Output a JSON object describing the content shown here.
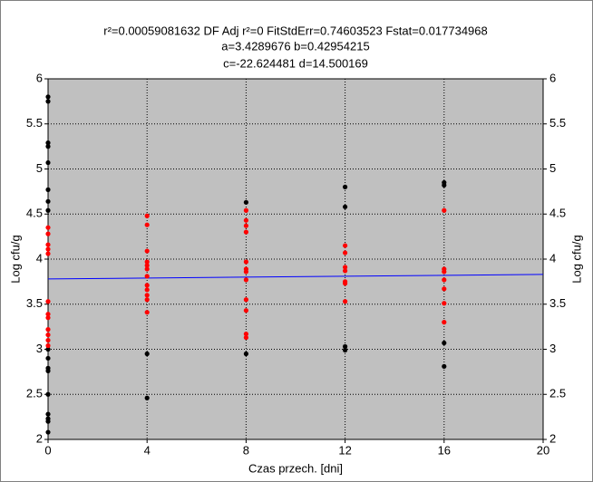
{
  "chart_data": {
    "type": "scatter",
    "title_lines": [
      "r²=0.00059081632  DF Adj r²=0  FitStdErr=0.74603523  Fstat=0.017734968",
      "a=3.4289676 b=0.42954215",
      "c=-22.624481 d=14.500169"
    ],
    "xlabel": "Czas przech. [dni]",
    "ylabel": "Log cfu/g",
    "y2label": "Log cfu/g",
    "xlim": [
      0,
      20
    ],
    "xticks": [
      0,
      4,
      8,
      12,
      16,
      20
    ],
    "ylim": [
      2,
      6
    ],
    "yticks": [
      2,
      2.5,
      3,
      3.5,
      4,
      4.5,
      5,
      5.5,
      6
    ],
    "y2lim": [
      2,
      6
    ],
    "y2ticks": [
      2,
      2.5,
      3,
      3.5,
      4,
      4.5,
      5,
      5.5,
      6
    ],
    "grid": true,
    "background": "#c0c0c0",
    "series": [
      {
        "type": "scatter",
        "color": "#000000",
        "x": [
          0,
          0,
          0,
          0,
          0,
          0,
          0,
          0,
          0,
          0,
          0,
          0,
          0,
          0,
          0,
          0,
          0,
          4,
          4,
          8,
          8,
          12,
          12,
          12,
          12,
          16,
          16,
          16,
          16
        ],
        "values": [
          5.8,
          5.75,
          5.29,
          5.25,
          5.07,
          4.77,
          4.64,
          4.54,
          3.0,
          2.9,
          2.79,
          2.76,
          2.5,
          2.28,
          2.23,
          2.2,
          2.08,
          2.95,
          2.46,
          4.63,
          2.95,
          4.8,
          4.58,
          3.03,
          2.99,
          4.85,
          4.82,
          3.07,
          2.81
        ]
      },
      {
        "type": "scatter",
        "color": "#ff0000",
        "x": [
          0,
          0,
          0,
          0,
          0,
          0,
          0,
          0,
          0,
          0,
          0,
          0,
          4,
          4,
          4,
          4,
          4,
          4,
          4,
          4,
          4,
          4,
          4,
          4,
          8,
          8,
          8,
          8,
          8,
          8,
          8,
          8,
          8,
          8,
          8,
          8,
          12,
          12,
          12,
          12,
          12,
          12,
          12,
          16,
          16,
          16,
          16,
          16,
          16,
          16
        ],
        "values": [
          4.35,
          4.28,
          4.16,
          4.11,
          4.06,
          3.53,
          3.39,
          3.35,
          3.22,
          3.16,
          3.1,
          3.04,
          4.48,
          4.38,
          4.09,
          3.97,
          3.93,
          3.89,
          3.81,
          3.71,
          3.66,
          3.6,
          3.55,
          3.41,
          4.54,
          4.43,
          4.37,
          4.3,
          3.97,
          3.89,
          3.86,
          3.77,
          3.55,
          3.43,
          3.17,
          3.13,
          4.15,
          4.07,
          3.91,
          3.87,
          3.75,
          3.73,
          3.53,
          4.54,
          3.89,
          3.86,
          3.77,
          3.67,
          3.51,
          3.3
        ]
      },
      {
        "type": "line",
        "color": "#0000ff",
        "x": [
          0,
          20
        ],
        "values": [
          3.78,
          3.83
        ]
      }
    ]
  }
}
